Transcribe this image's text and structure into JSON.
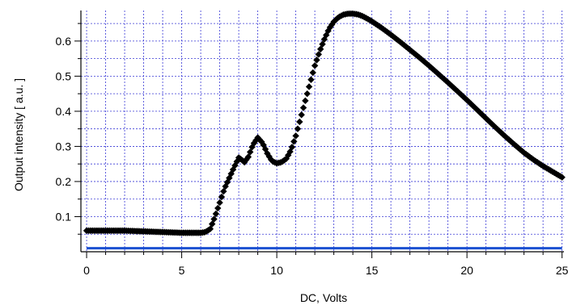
{
  "chart_data": {
    "type": "scatter",
    "title": "",
    "xlabel": "DC, Volts",
    "ylabel": "Output intensity [ a.u. ]",
    "xlim": [
      -0.3,
      25.1
    ],
    "ylim": [
      0.0,
      0.687
    ],
    "xticks": [
      0,
      5,
      10,
      15,
      20,
      25
    ],
    "yticks": [
      0.1,
      0.2,
      0.3,
      0.4,
      0.5,
      0.6
    ],
    "xtick_labels": [
      "0",
      "5",
      "10",
      "15",
      "20",
      "25"
    ],
    "ytick_labels": [
      "0.1",
      "0.2",
      "0.3",
      "0.4",
      "0.5",
      "0.6"
    ],
    "grid": true,
    "grid_color": "#3a3ad6",
    "series": [
      {
        "marker": "diamond",
        "color": "#000000",
        "x": [
          0,
          0.5,
          1,
          1.5,
          2,
          2.5,
          3,
          3.5,
          4,
          4.5,
          5,
          5.5,
          6,
          6.25,
          6.5,
          6.75,
          7,
          7.25,
          7.5,
          7.75,
          8,
          8.15,
          8.3,
          8.5,
          8.75,
          9,
          9.25,
          9.5,
          9.75,
          10,
          10.25,
          10.5,
          10.75,
          11,
          11.25,
          11.5,
          11.75,
          12,
          12.25,
          12.5,
          12.75,
          13,
          13.25,
          13.5,
          13.75,
          14,
          14.25,
          14.5,
          14.75,
          15,
          15.5,
          16,
          16.5,
          17,
          17.5,
          18,
          18.5,
          19,
          19.5,
          20,
          20.5,
          21,
          21.5,
          22,
          22.5,
          23,
          23.5,
          24,
          24.5,
          25
        ],
        "y": [
          0.06,
          0.06,
          0.06,
          0.06,
          0.06,
          0.059,
          0.058,
          0.057,
          0.056,
          0.055,
          0.054,
          0.054,
          0.054,
          0.056,
          0.065,
          0.1,
          0.14,
          0.18,
          0.21,
          0.24,
          0.268,
          0.262,
          0.255,
          0.27,
          0.305,
          0.325,
          0.31,
          0.28,
          0.258,
          0.252,
          0.255,
          0.265,
          0.29,
          0.33,
          0.38,
          0.43,
          0.48,
          0.53,
          0.57,
          0.605,
          0.635,
          0.655,
          0.668,
          0.675,
          0.678,
          0.678,
          0.676,
          0.671,
          0.664,
          0.656,
          0.638,
          0.618,
          0.597,
          0.575,
          0.553,
          0.53,
          0.506,
          0.482,
          0.457,
          0.432,
          0.406,
          0.38,
          0.354,
          0.329,
          0.305,
          0.282,
          0.262,
          0.244,
          0.228,
          0.212
        ]
      },
      {
        "marker": "line",
        "color": "#1a4fd1",
        "x": [
          0,
          25
        ],
        "y": [
          0.01,
          0.01
        ]
      }
    ]
  }
}
